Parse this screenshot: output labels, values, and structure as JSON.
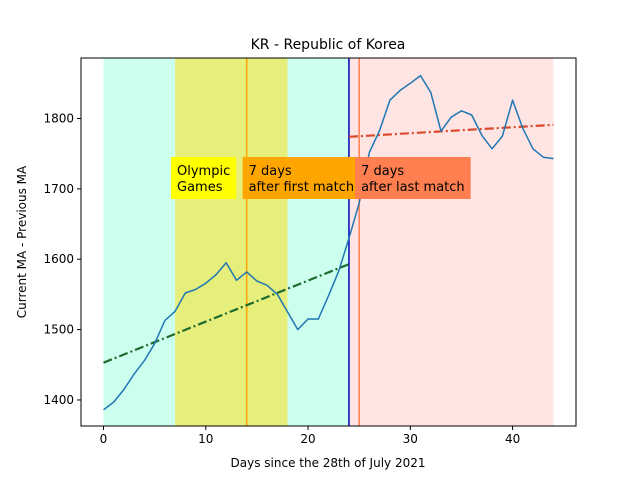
{
  "chart_data": {
    "type": "line",
    "title": "KR - Republic of Korea",
    "xlabel": "Days since the 28th of July 2021",
    "ylabel": "Current MA - Previous MA",
    "xlim": [
      -2.2,
      46.2
    ],
    "ylim": [
      1363,
      1886
    ],
    "x_ticks": [
      0,
      10,
      20,
      30,
      40
    ],
    "y_ticks": [
      1400,
      1500,
      1600,
      1700,
      1800
    ],
    "grid": false,
    "series": [
      {
        "color": "#1f77b4",
        "x": [
          0,
          1,
          2,
          3,
          4,
          5,
          6,
          7,
          8,
          9,
          10,
          11,
          12,
          13,
          14,
          15,
          16,
          17,
          18,
          19,
          20,
          21,
          22,
          23,
          24,
          25,
          26,
          27,
          28,
          29,
          30,
          31,
          32,
          33,
          34,
          35,
          36,
          37,
          38,
          39,
          40,
          41,
          42,
          43,
          44
        ],
        "y": [
          1386,
          1397,
          1415,
          1437,
          1456,
          1480,
          1513,
          1526,
          1552,
          1557,
          1566,
          1578,
          1595,
          1570,
          1582,
          1569,
          1563,
          1550,
          1525,
          1500,
          1515,
          1515,
          1548,
          1583,
          1630,
          1680,
          1752,
          1783,
          1826,
          1840,
          1850,
          1861,
          1837,
          1782,
          1802,
          1811,
          1805,
          1776,
          1757,
          1775,
          1826,
          1786,
          1757,
          1745,
          1743
        ]
      }
    ],
    "trend_lines": [
      {
        "color": "#1e6b2e",
        "x": [
          0,
          24
        ],
        "y": [
          1453,
          1593
        ]
      },
      {
        "color": "#d84a2b",
        "x": [
          24,
          44
        ],
        "y": [
          1774,
          1791
        ]
      }
    ],
    "shaded_regions": [
      {
        "x0": 0,
        "x1": 7,
        "color": "#ccffee"
      },
      {
        "x0": 7,
        "x1": 18,
        "color": "#e6ee7c"
      },
      {
        "x0": 18,
        "x1": 24,
        "color": "#ccffee"
      },
      {
        "x0": 24,
        "x1": 44,
        "color": "#ffe4e4"
      }
    ],
    "vertical_lines": [
      {
        "x": 14,
        "color": "#ffa500"
      },
      {
        "x": 24,
        "color": "#0000bb"
      },
      {
        "x": 25,
        "color": "#ff7f50"
      }
    ],
    "annotations": [
      {
        "lines": [
          "Olympic",
          "Games"
        ],
        "x": 6.6,
        "bg": "#ffff00"
      },
      {
        "lines": [
          "7 days",
          "after first match"
        ],
        "x": 13.6,
        "bg": "#ffa500"
      },
      {
        "lines": [
          "7 days",
          "after last match"
        ],
        "x": 24.6,
        "bg": "#ff7f50"
      }
    ]
  }
}
